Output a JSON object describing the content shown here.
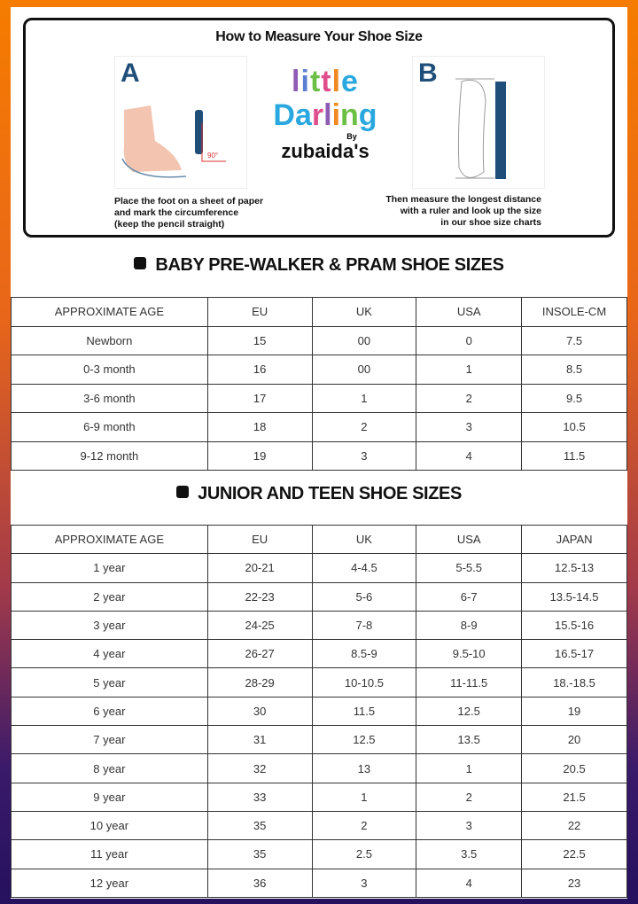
{
  "measure": {
    "title": "How to Measure Your Shoe Size",
    "step_a": {
      "letter": "A",
      "caption": [
        "Place the foot on a sheet of paper",
        "and mark the circumference",
        "(keep the pencil straight)"
      ],
      "angle": "90°"
    },
    "step_b": {
      "letter": "B",
      "caption": [
        "Then measure the longest distance",
        "with a ruler and look up the size",
        "in our shoe size charts"
      ]
    }
  },
  "logo": {
    "line1": "little",
    "line2": "Darling",
    "by": "By",
    "brand": "zubaida's"
  },
  "baby": {
    "title": "BABY PRE-WALKER & PRAM SHOE SIZES",
    "headers": [
      "APPROXIMATE AGE",
      "EU",
      "UK",
      "USA",
      "INSOLE-CM"
    ],
    "rows": [
      [
        "Newborn",
        "15",
        "00",
        "0",
        "7.5"
      ],
      [
        "0-3 month",
        "16",
        "00",
        "1",
        "8.5"
      ],
      [
        "3-6 month",
        "17",
        "1",
        "2",
        "9.5"
      ],
      [
        "6-9 month",
        "18",
        "2",
        "3",
        "10.5"
      ],
      [
        "9-12 month",
        "19",
        "3",
        "4",
        "11.5"
      ]
    ]
  },
  "junior": {
    "title": "JUNIOR AND TEEN SHOE SIZES",
    "headers": [
      "APPROXIMATE AGE",
      "EU",
      "UK",
      "USA",
      "JAPAN"
    ],
    "rows": [
      [
        "1 year",
        "20-21",
        "4-4.5",
        "5-5.5",
        "12.5-13"
      ],
      [
        "2 year",
        "22-23",
        "5-6",
        "6-7",
        "13.5-14.5"
      ],
      [
        "3 year",
        "24-25",
        "7-8",
        "8-9",
        "15.5-16"
      ],
      [
        "4 year",
        "26-27",
        "8.5-9",
        "9.5-10",
        "16.5-17"
      ],
      [
        "5 year",
        "28-29",
        "10-10.5",
        "11-11.5",
        "18.-18.5"
      ],
      [
        "6 year",
        "30",
        "11.5",
        "12.5",
        "19"
      ],
      [
        "7 year",
        "31",
        "12.5",
        "13.5",
        "20"
      ],
      [
        "8 year",
        "32",
        "13",
        "1",
        "20.5"
      ],
      [
        "9 year",
        "33",
        "1",
        "2",
        "21.5"
      ],
      [
        "10 year",
        "35",
        "2",
        "3",
        "22"
      ],
      [
        "11 year",
        "35",
        "2.5",
        "3.5",
        "22.5"
      ],
      [
        "12 year",
        "36",
        "3",
        "4",
        "23"
      ]
    ]
  }
}
